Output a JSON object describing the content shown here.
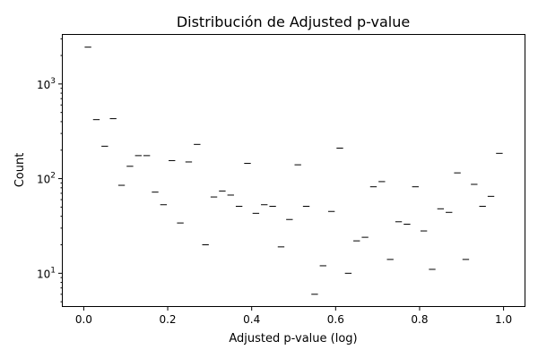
{
  "chart_data": {
    "type": "bar",
    "title": "Distribución de Adjusted p-value",
    "xlabel": "Adjusted p-value (log)",
    "ylabel": "Count",
    "yscale": "log",
    "xlim": [
      -0.05,
      1.05
    ],
    "ylim": [
      4.5,
      3300
    ],
    "bin_width": 0.02,
    "x": [
      0.01,
      0.03,
      0.05,
      0.07,
      0.09,
      0.11,
      0.13,
      0.15,
      0.17,
      0.19,
      0.21,
      0.23,
      0.25,
      0.27,
      0.29,
      0.31,
      0.33,
      0.35,
      0.37,
      0.39,
      0.41,
      0.43,
      0.45,
      0.47,
      0.49,
      0.51,
      0.53,
      0.55,
      0.57,
      0.59,
      0.61,
      0.63,
      0.65,
      0.67,
      0.69,
      0.71,
      0.73,
      0.75,
      0.77,
      0.79,
      0.81,
      0.83,
      0.85,
      0.87,
      0.89,
      0.91,
      0.93,
      0.95,
      0.97,
      0.99
    ],
    "values": [
      2450,
      420,
      220,
      430,
      85,
      135,
      175,
      175,
      72,
      53,
      155,
      34,
      150,
      230,
      20,
      64,
      74,
      67,
      51,
      145,
      43,
      53,
      51,
      19,
      37,
      140,
      51,
      6,
      12,
      45,
      210,
      10,
      22,
      24,
      82,
      93,
      14,
      35,
      33,
      82,
      28,
      11,
      48,
      44,
      115,
      14,
      87,
      51,
      65,
      185
    ],
    "xticks": [
      {
        "value": 0.0,
        "label": "0.0"
      },
      {
        "value": 0.2,
        "label": "0.2"
      },
      {
        "value": 0.4,
        "label": "0.4"
      },
      {
        "value": 0.6,
        "label": "0.6"
      },
      {
        "value": 0.8,
        "label": "0.8"
      },
      {
        "value": 1.0,
        "label": "1.0"
      }
    ],
    "yticks": [
      {
        "value": 10,
        "base": "10",
        "exp": "1"
      },
      {
        "value": 100,
        "base": "10",
        "exp": "2"
      },
      {
        "value": 1000,
        "base": "10",
        "exp": "3"
      }
    ],
    "grid": false,
    "bar_color": "#ffffff",
    "edge_color": "#000000"
  }
}
